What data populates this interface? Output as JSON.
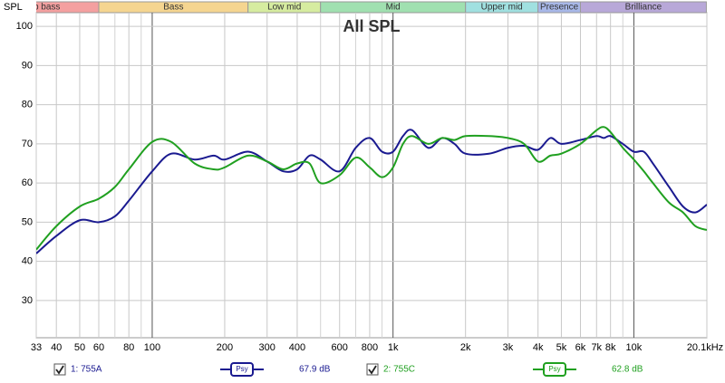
{
  "chart_data": {
    "type": "line",
    "title": "All SPL",
    "y_label": "SPL",
    "x_scale": "log",
    "xlim": [
      33,
      20100
    ],
    "ylim": [
      20.5,
      103.5
    ],
    "xticks": [
      33,
      40,
      50,
      60,
      80,
      100,
      200,
      300,
      400,
      600,
      800,
      {
        "value": 1000,
        "label": "1k"
      },
      {
        "value": 2000,
        "label": "2k"
      },
      {
        "value": 3000,
        "label": "3k"
      },
      {
        "value": 4000,
        "label": "4k"
      },
      {
        "value": 5000,
        "label": "5k"
      },
      {
        "value": 6000,
        "label": "6k"
      },
      {
        "value": 7000,
        "label": "7k"
      },
      {
        "value": 8000,
        "label": "8k"
      },
      {
        "value": 10000,
        "label": "10k"
      },
      {
        "value": 20100,
        "label": "20.1kHz"
      }
    ],
    "x_minor_grid": [
      70,
      90,
      500,
      700,
      900,
      9000
    ],
    "yticks": [
      30,
      40,
      50,
      60,
      70,
      80,
      90,
      100
    ],
    "grid": true,
    "bands": [
      {
        "name": "Sub bass",
        "from": 20,
        "to": 60,
        "color": "#f4a0a0"
      },
      {
        "name": "Bass",
        "from": 60,
        "to": 250,
        "color": "#f5d590"
      },
      {
        "name": "Low mid",
        "from": 250,
        "to": 500,
        "color": "#d6eca0"
      },
      {
        "name": "Mid",
        "from": 500,
        "to": 2000,
        "color": "#a0e0b0"
      },
      {
        "name": "Upper mid",
        "from": 2000,
        "to": 4000,
        "color": "#a0e0e0"
      },
      {
        "name": "Presence",
        "from": 4000,
        "to": 6000,
        "color": "#a8b8e8"
      },
      {
        "name": "Brilliance",
        "from": 6000,
        "to": 20000,
        "color": "#b8a8d8"
      }
    ],
    "x": [
      33,
      40,
      50,
      60,
      70,
      80,
      100,
      120,
      150,
      180,
      200,
      250,
      300,
      350,
      400,
      450,
      500,
      600,
      700,
      800,
      900,
      1000,
      1100,
      1200,
      1400,
      1600,
      1800,
      2000,
      2500,
      3000,
      3500,
      4000,
      4500,
      5000,
      6000,
      7000,
      7500,
      8000,
      9000,
      10000,
      11000,
      12000,
      14000,
      16000,
      18000,
      20100
    ],
    "series": [
      {
        "name": "1: 755A",
        "color": "#1a1a90",
        "smoothing": "Psy",
        "level": "67.9 dB",
        "values": [
          42,
          46.5,
          50.5,
          50,
          51.5,
          55.5,
          63,
          67.5,
          66,
          67,
          66,
          68,
          65.5,
          63,
          63.5,
          67,
          66,
          63,
          69,
          71.5,
          68,
          68,
          72,
          73.5,
          69,
          71.5,
          70,
          67.5,
          67.5,
          69,
          69.5,
          68.5,
          71.5,
          70,
          71,
          72,
          71.5,
          72,
          70,
          68,
          68,
          65,
          59,
          54,
          52.5,
          54.5
        ]
      },
      {
        "name": "2: 755C",
        "color": "#20a020",
        "smoothing": "Psy",
        "level": "62.8 dB",
        "values": [
          43,
          49,
          54,
          56,
          59,
          63.5,
          70.5,
          70.5,
          65,
          63.5,
          64,
          67,
          65.5,
          63.5,
          65,
          65,
          60,
          62,
          66.5,
          64,
          61.5,
          64,
          70,
          72,
          70,
          71.5,
          71,
          72,
          72,
          71.5,
          70,
          65.5,
          67,
          67.5,
          70,
          73.5,
          74.3,
          73,
          69,
          66,
          63,
          60,
          55,
          52.5,
          49,
          48
        ]
      }
    ]
  }
}
